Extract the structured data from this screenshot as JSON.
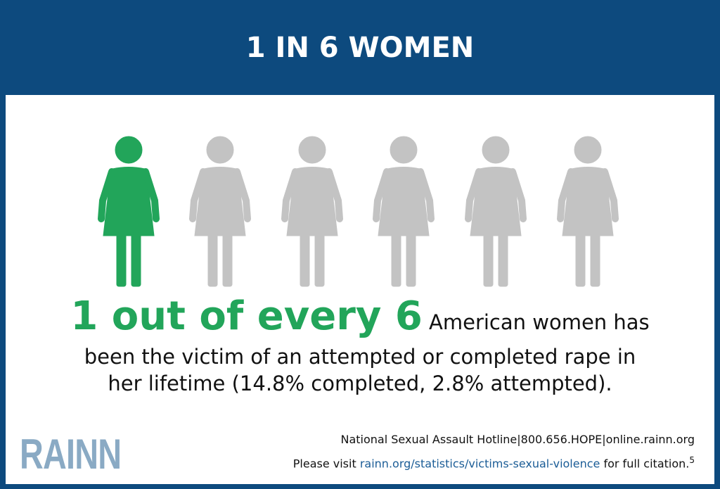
{
  "header": {
    "title": "1 IN 6 WOMEN"
  },
  "statement": {
    "highlight": "1 out of every 6",
    "lines": [
      "American women has",
      "been the victim of an attempted or completed rape in",
      "her lifetime (14.8% completed, 2.8% attempted)."
    ]
  },
  "footer": {
    "logo": "RAINN",
    "hotline": "National Sexual Assault Hotline|800.656.HOPE|online.rainn.org",
    "citation": {
      "prefix": "Please visit",
      "link": "rainn.org/statistics/victims-sexual-violence",
      "suffix": "for full citation.",
      "note": "5"
    }
  }
}
